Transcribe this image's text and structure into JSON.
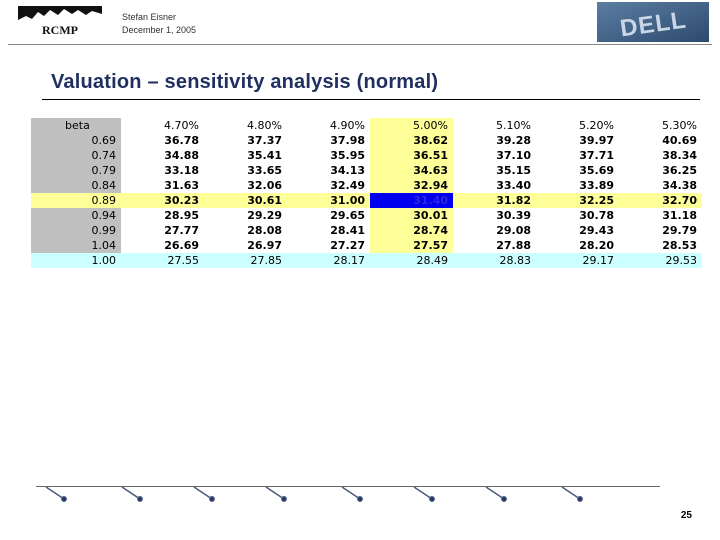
{
  "header": {
    "rcmp_logo_text": "RCMP",
    "author": "Stefan Eisner",
    "date": "December 1, 2005",
    "dell_logo_text": "DELL"
  },
  "slide": {
    "title": "Valuation – sensitivity analysis (normal)",
    "page_number": "25"
  },
  "table": {
    "corner_label": "beta",
    "columns": [
      "4.70%",
      "4.80%",
      "4.90%",
      "5.00%",
      "5.10%",
      "5.20%",
      "5.30%"
    ],
    "rows": [
      {
        "beta": "0.69",
        "values": [
          "36.78",
          "37.37",
          "37.98",
          "38.62",
          "39.28",
          "39.97",
          "40.69"
        ]
      },
      {
        "beta": "0.74",
        "values": [
          "34.88",
          "35.41",
          "35.95",
          "36.51",
          "37.10",
          "37.71",
          "38.34"
        ]
      },
      {
        "beta": "0.79",
        "values": [
          "33.18",
          "33.65",
          "34.13",
          "34.63",
          "35.15",
          "35.69",
          "36.25"
        ]
      },
      {
        "beta": "0.84",
        "values": [
          "31.63",
          "32.06",
          "32.49",
          "32.94",
          "33.40",
          "33.89",
          "34.38"
        ]
      },
      {
        "beta": "0.89",
        "values": [
          "30.23",
          "30.61",
          "31.00",
          "31.40",
          "31.82",
          "32.25",
          "32.70"
        ]
      },
      {
        "beta": "0.94",
        "values": [
          "28.95",
          "29.29",
          "29.65",
          "30.01",
          "30.39",
          "30.78",
          "31.18"
        ]
      },
      {
        "beta": "0.99",
        "values": [
          "27.77",
          "28.08",
          "28.41",
          "28.74",
          "29.08",
          "29.43",
          "29.79"
        ]
      },
      {
        "beta": "1.04",
        "values": [
          "26.69",
          "26.97",
          "27.27",
          "27.57",
          "27.88",
          "28.20",
          "28.53"
        ]
      },
      {
        "beta": "1.00",
        "values": [
          "27.55",
          "27.85",
          "28.17",
          "28.49",
          "28.83",
          "29.17",
          "29.53"
        ]
      }
    ]
  },
  "colors": {
    "title": "#1f2f5f",
    "highlight_yellow": "#ffff99",
    "row_header_gray": "#c0c0c0",
    "last_row_cyan": "#ccffff",
    "selected_cell": "#0000ee"
  }
}
